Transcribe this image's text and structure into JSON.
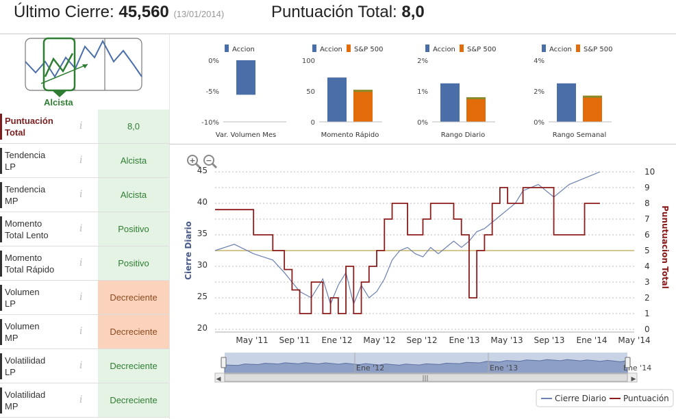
{
  "header": {
    "last_close_label": "Último Cierre:",
    "last_close_value": "45,560",
    "last_close_date": "(13/01/2014)",
    "total_score_label": "Puntuación Total:",
    "total_score_value": "8,0"
  },
  "trend": {
    "label": "Alcista"
  },
  "scores": [
    {
      "name_line1": "Puntuación",
      "name_line2": "Total",
      "value": "8,0",
      "tone": "green",
      "total": true
    },
    {
      "name_line1": "Tendencia",
      "name_line2": "LP",
      "value": "Alcista",
      "tone": "green"
    },
    {
      "name_line1": "Tendencia",
      "name_line2": "MP",
      "value": "Alcista",
      "tone": "green"
    },
    {
      "name_line1": "Momento",
      "name_line2": "Total Lento",
      "value": "Positivo",
      "tone": "green"
    },
    {
      "name_line1": "Momento",
      "name_line2": "Total Rápido",
      "value": "Positivo",
      "tone": "green"
    },
    {
      "name_line1": "Volumen",
      "name_line2": "LP",
      "value": "Decreciente",
      "tone": "orange"
    },
    {
      "name_line1": "Volumen",
      "name_line2": "MP",
      "value": "Decreciente",
      "tone": "orange"
    },
    {
      "name_line1": "Volatilidad",
      "name_line2": "LP",
      "value": "Decreciente",
      "tone": "green"
    },
    {
      "name_line1": "Volatilidad",
      "name_line2": "MP",
      "value": "Decreciente",
      "tone": "green"
    }
  ],
  "info_glyph": "i",
  "colors": {
    "accion": "#4a6ea8",
    "sp500": "#e36c0a",
    "sp500_top": "#8a8a2a",
    "close_line": "#6b7fb0",
    "score_line": "#8b1a1a",
    "threshold": "#c8b46c"
  },
  "chart_data": [
    {
      "type": "bar",
      "legend": [
        "Accion"
      ],
      "categories": [
        "Var. Volumen Mes"
      ],
      "series": [
        {
          "name": "Accion",
          "values": [
            -5.6
          ]
        }
      ],
      "yticks": [
        "0%",
        "-5%",
        "-10%"
      ],
      "ylim": [
        -10,
        0
      ]
    },
    {
      "type": "bar",
      "legend": [
        "Accion",
        "S&P 500"
      ],
      "categories": [
        "Momento Rápido"
      ],
      "series": [
        {
          "name": "Accion",
          "values": [
            72
          ]
        },
        {
          "name": "S&P 500",
          "values": [
            52
          ]
        }
      ],
      "yticks": [
        "100",
        "50",
        "0"
      ],
      "ylim": [
        0,
        100
      ]
    },
    {
      "type": "bar",
      "legend": [
        "Accion",
        "S&P 500"
      ],
      "categories": [
        "Rango Diario"
      ],
      "series": [
        {
          "name": "Accion",
          "values": [
            1.25
          ]
        },
        {
          "name": "S&P 500",
          "values": [
            0.8
          ]
        }
      ],
      "yticks": [
        "2%",
        "1%",
        "0%"
      ],
      "ylim": [
        0,
        2
      ]
    },
    {
      "type": "bar",
      "legend": [
        "Accion",
        "S&P 500"
      ],
      "categories": [
        "Rango Semanal"
      ],
      "series": [
        {
          "name": "Accion",
          "values": [
            2.5
          ]
        },
        {
          "name": "S&P 500",
          "values": [
            1.7
          ]
        }
      ],
      "yticks": [
        "4%",
        "2%",
        "0%"
      ],
      "ylim": [
        0,
        4
      ]
    },
    {
      "type": "line",
      "ylabel_left": "Cierre Diario",
      "ylabel_right": "Punutuacion Total",
      "ylim_left": [
        20,
        45
      ],
      "ylim_right": [
        0,
        10
      ],
      "yticks_left": [
        "20",
        "25",
        "30",
        "35",
        "40",
        "45"
      ],
      "yticks_right": [
        "0",
        "1",
        "2",
        "3",
        "4",
        "5",
        "6",
        "7",
        "8",
        "9",
        "10"
      ],
      "xticks": [
        "May '11",
        "Sep '11",
        "Ene '12",
        "May '12",
        "Sep '12",
        "Ene '13",
        "May '13",
        "Sep '13",
        "Ene '14",
        "May '14"
      ],
      "navigator_labels": [
        "Ene '12",
        "Ene '13",
        "Ene '14"
      ],
      "threshold": 5,
      "legend": [
        "Cierre Diario",
        "Puntuación"
      ],
      "x": [
        0,
        5,
        10,
        15,
        18,
        20,
        22,
        25,
        28,
        30,
        32,
        34,
        36,
        38,
        40,
        42,
        44,
        46,
        48,
        50,
        52,
        54,
        56,
        58,
        60,
        62,
        64,
        66,
        68,
        70,
        72,
        74,
        76,
        78,
        80,
        84,
        88,
        92,
        96,
        100
      ],
      "series": [
        {
          "name": "Cierre Diario",
          "values": [
            32.5,
            33.5,
            32,
            31,
            29,
            27.5,
            26,
            25,
            28,
            24,
            27,
            29,
            24,
            27,
            25,
            26,
            28,
            31,
            32.5,
            33,
            32,
            31.5,
            33,
            32,
            33,
            34,
            33,
            34,
            35.5,
            36,
            37,
            38,
            39,
            40,
            42,
            43,
            41,
            43,
            44,
            45
          ]
        },
        {
          "name": "Puntuación",
          "values": [
            7.6,
            7.6,
            6,
            5,
            3.8,
            2.5,
            1,
            3,
            1,
            2,
            1,
            4,
            1,
            3,
            4,
            5,
            7,
            8,
            8,
            6,
            6,
            7,
            8,
            8,
            8,
            7,
            6,
            2,
            5,
            6,
            8,
            9,
            8,
            8,
            9,
            9,
            6,
            6,
            8,
            8
          ]
        }
      ]
    }
  ],
  "zoom": {
    "in_glyph": "+",
    "out_glyph": "−"
  }
}
